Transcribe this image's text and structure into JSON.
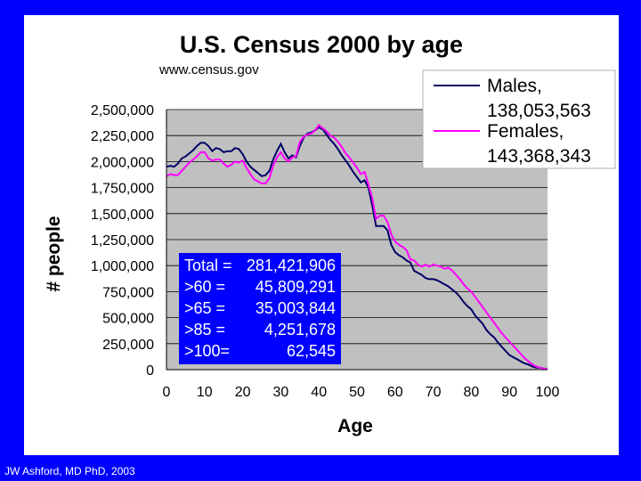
{
  "chart_data": {
    "type": "line",
    "title": "U.S. Census 2000 by age",
    "source": "www.census.gov",
    "xlabel": "Age",
    "ylabel": "# people",
    "xlim": [
      0,
      100
    ],
    "ylim": [
      0,
      2500000
    ],
    "xticks": [
      0,
      10,
      20,
      30,
      40,
      50,
      60,
      70,
      80,
      90,
      100
    ],
    "yticks": [
      0,
      250000,
      500000,
      750000,
      1000000,
      1250000,
      1500000,
      1750000,
      2000000,
      2250000,
      2500000
    ],
    "xtick_labels": [
      "0",
      "10",
      "20",
      "30",
      "40",
      "50",
      "60",
      "70",
      "80",
      "90",
      "100"
    ],
    "ytick_labels": [
      "0",
      "250,000",
      "500,000",
      "750,000",
      "1,000,000",
      "1,250,000",
      "1,500,000",
      "1,750,000",
      "2,000,000",
      "2,250,000",
      "2,500,000"
    ],
    "grid": "horizontal",
    "legend": "top-right",
    "x": [
      0,
      1,
      2,
      3,
      4,
      5,
      6,
      7,
      8,
      9,
      10,
      11,
      12,
      13,
      14,
      15,
      16,
      17,
      18,
      19,
      20,
      21,
      22,
      23,
      24,
      25,
      26,
      27,
      28,
      29,
      30,
      31,
      32,
      33,
      34,
      35,
      36,
      37,
      38,
      39,
      40,
      41,
      42,
      43,
      44,
      45,
      46,
      47,
      48,
      49,
      50,
      51,
      52,
      53,
      54,
      55,
      56,
      57,
      58,
      59,
      60,
      61,
      62,
      63,
      64,
      65,
      66,
      67,
      68,
      69,
      70,
      71,
      72,
      73,
      74,
      75,
      76,
      77,
      78,
      79,
      80,
      81,
      82,
      83,
      84,
      85,
      86,
      87,
      88,
      89,
      90,
      91,
      92,
      93,
      94,
      95,
      96,
      97,
      98,
      99,
      100
    ],
    "series": [
      {
        "name": "Males,",
        "total": "138,053,563",
        "color": "#000066",
        "values": [
          1950000,
          1960000,
          1950000,
          1980000,
          2030000,
          2050000,
          2080000,
          2110000,
          2150000,
          2180000,
          2180000,
          2150000,
          2100000,
          2130000,
          2120000,
          2090000,
          2100000,
          2100000,
          2130000,
          2120000,
          2070000,
          2000000,
          1950000,
          1920000,
          1890000,
          1860000,
          1870000,
          1910000,
          2020000,
          2100000,
          2170000,
          2090000,
          2030000,
          2060000,
          2040000,
          2150000,
          2230000,
          2270000,
          2280000,
          2300000,
          2330000,
          2310000,
          2260000,
          2210000,
          2170000,
          2120000,
          2060000,
          2010000,
          1960000,
          1900000,
          1850000,
          1800000,
          1820000,
          1750000,
          1580000,
          1380000,
          1380000,
          1380000,
          1340000,
          1200000,
          1130000,
          1100000,
          1080000,
          1050000,
          1030000,
          950000,
          930000,
          910000,
          880000,
          870000,
          870000,
          860000,
          840000,
          820000,
          800000,
          770000,
          740000,
          700000,
          650000,
          610000,
          580000,
          520000,
          480000,
          440000,
          380000,
          340000,
          310000,
          260000,
          220000,
          180000,
          140000,
          120000,
          100000,
          80000,
          60000,
          50000,
          30000,
          20000,
          20000,
          10000,
          5000
        ]
      },
      {
        "name": "Females,",
        "total": "143,368,343",
        "color": "#ff00ff",
        "values": [
          1860000,
          1880000,
          1870000,
          1870000,
          1910000,
          1950000,
          1990000,
          2020000,
          2050000,
          2090000,
          2090000,
          2030000,
          2010000,
          2020000,
          2020000,
          1980000,
          1950000,
          1970000,
          2000000,
          1990000,
          2010000,
          1940000,
          1880000,
          1830000,
          1810000,
          1790000,
          1790000,
          1840000,
          1960000,
          2040000,
          2090000,
          2030000,
          2000000,
          2040000,
          2050000,
          2190000,
          2240000,
          2260000,
          2270000,
          2300000,
          2350000,
          2320000,
          2290000,
          2250000,
          2230000,
          2190000,
          2140000,
          2080000,
          2040000,
          1990000,
          1940000,
          1880000,
          1900000,
          1780000,
          1650000,
          1450000,
          1480000,
          1480000,
          1420000,
          1300000,
          1230000,
          1200000,
          1180000,
          1150000,
          1060000,
          1050000,
          1010000,
          990000,
          1010000,
          990000,
          1010000,
          1000000,
          990000,
          970000,
          980000,
          950000,
          910000,
          870000,
          820000,
          780000,
          750000,
          700000,
          650000,
          600000,
          550000,
          500000,
          450000,
          400000,
          350000,
          310000,
          270000,
          230000,
          190000,
          150000,
          110000,
          80000,
          50000,
          30000,
          20000,
          10000,
          5000
        ]
      }
    ],
    "stats_box": [
      {
        "label": "Total =",
        "value": "281,421,906"
      },
      {
        "label": ">60 =",
        "value": "45,809,291"
      },
      {
        "label": ">65 =",
        "value": "35,003,844"
      },
      {
        "label": ">85 =",
        "value": "4,251,678"
      },
      {
        "label": ">100=",
        "value": "62,545"
      }
    ]
  },
  "footer": {
    "credit": "JW Ashford, MD PhD, 2003"
  }
}
